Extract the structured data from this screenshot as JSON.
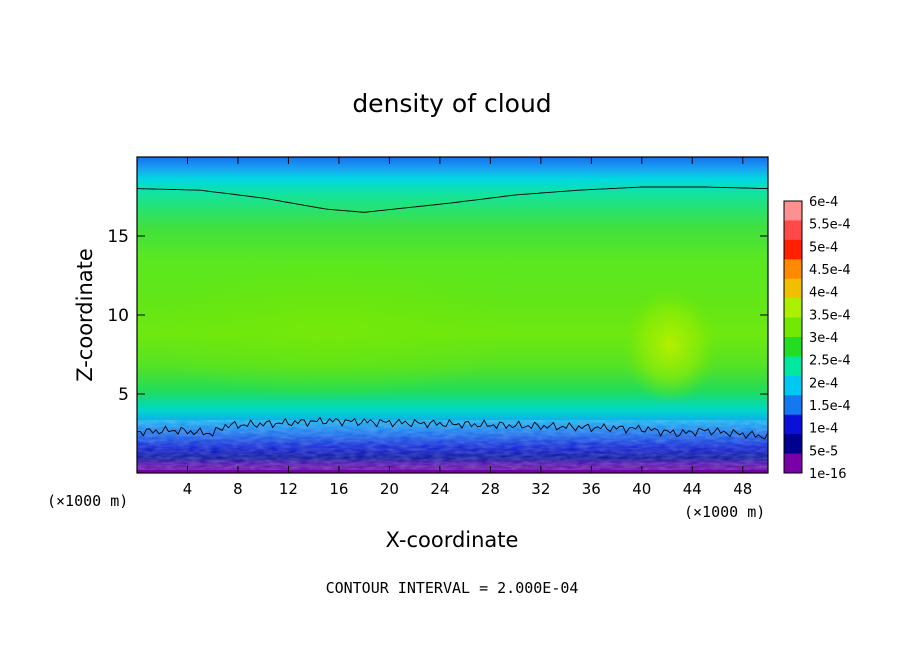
{
  "chart_data": {
    "type": "heatmap",
    "title": "density of cloud",
    "xlabel": "X-coordinate",
    "ylabel": "Z-coordinate",
    "x_unit_left": "(×1000 m)",
    "x_unit_right": "(×1000 m)",
    "xlim": [
      0,
      50
    ],
    "ylim": [
      0,
      20
    ],
    "x_ticks": [
      "4",
      "8",
      "12",
      "16",
      "20",
      "24",
      "28",
      "32",
      "36",
      "40",
      "44",
      "48"
    ],
    "x_tick_values": [
      4,
      8,
      12,
      16,
      20,
      24,
      28,
      32,
      36,
      40,
      44,
      48
    ],
    "y_ticks": [
      "5",
      "10",
      "15"
    ],
    "y_tick_values": [
      5,
      10,
      15
    ],
    "colorbar": {
      "labels": [
        "6e-4",
        "5.5e-4",
        "5e-4",
        "4.5e-4",
        "4e-4",
        "3.5e-4",
        "3e-4",
        "2.5e-4",
        "2e-4",
        "1.5e-4",
        "1e-4",
        "5e-5",
        "1e-16"
      ],
      "colors": [
        "#ff9090",
        "#ff4848",
        "#ff2000",
        "#ff8a00",
        "#f0c000",
        "#aaf000",
        "#70e800",
        "#22dd22",
        "#00e8a0",
        "#00c8f0",
        "#1478f0",
        "#0a10d8",
        "#000090",
        "#7a00a8"
      ]
    },
    "footer": "CONTOUR INTERVAL = 2.000E-04",
    "contour_level": 0.0002,
    "upper_contour_z": [
      [
        0,
        18.0
      ],
      [
        5,
        17.9
      ],
      [
        10,
        17.4
      ],
      [
        15,
        16.7
      ],
      [
        18,
        16.5
      ],
      [
        25,
        17.1
      ],
      [
        30,
        17.6
      ],
      [
        35,
        17.9
      ],
      [
        40,
        18.1
      ],
      [
        45,
        18.1
      ],
      [
        50,
        18.0
      ]
    ],
    "lower_contour_z": [
      [
        0,
        2.6
      ],
      [
        3,
        2.7
      ],
      [
        6,
        2.5
      ],
      [
        7,
        3.0
      ],
      [
        10,
        3.1
      ],
      [
        15,
        3.3
      ],
      [
        20,
        3.2
      ],
      [
        25,
        3.1
      ],
      [
        30,
        3.0
      ],
      [
        35,
        2.9
      ],
      [
        40,
        2.8
      ],
      [
        43,
        2.5
      ],
      [
        45,
        2.7
      ],
      [
        50,
        2.3
      ]
    ]
  }
}
